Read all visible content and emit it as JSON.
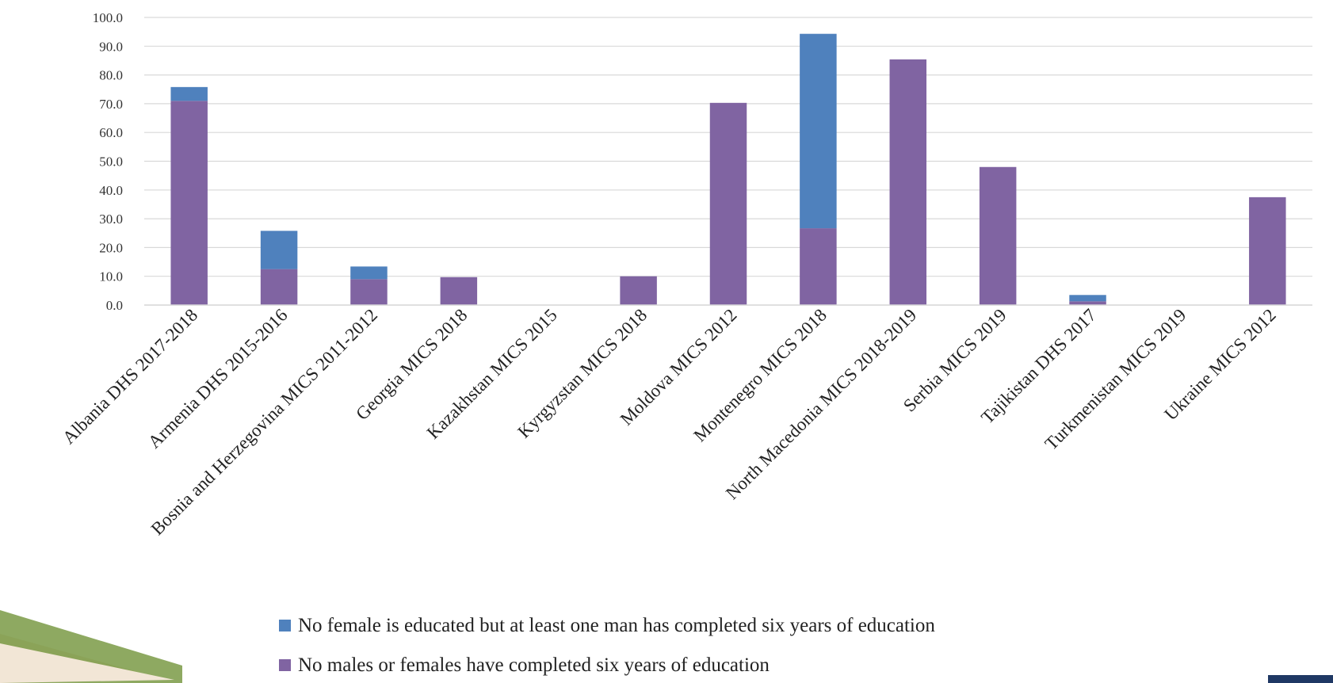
{
  "chart_data": {
    "type": "bar",
    "stacked": true,
    "categories": [
      "Albania DHS 2017-2018",
      "Armenia DHS 2015-2016",
      "Bosnia and Herzegovina MICS 2011-2012",
      "Georgia MICS 2018",
      "Kazakhstan MICS 2015",
      "Kyrgyzstan MICS 2018",
      "Moldova MICS 2012",
      "Montenegro MICS 2018",
      "North Macedonia MICS 2018-2019",
      "Serbia MICS 2019",
      "Tajikistan DHS 2017",
      "Turkmenistan MICS 2019",
      "Ukraine MICS 2012"
    ],
    "series": [
      {
        "name": "No males or females have completed six years of education",
        "color": "#8064a2",
        "values": [
          71.0,
          12.5,
          9.0,
          9.7,
          0.0,
          10.0,
          70.3,
          26.7,
          85.4,
          48.0,
          1.3,
          0.0,
          37.5
        ]
      },
      {
        "name": "No female is educated but at least one man has completed six years of education",
        "color": "#4f81bd",
        "values": [
          4.8,
          13.3,
          4.4,
          0.0,
          0.0,
          0.0,
          0.0,
          67.6,
          0.0,
          0.0,
          2.2,
          0.0,
          0.0
        ]
      }
    ],
    "ylim": [
      0,
      100
    ],
    "yticks": [
      "0.0",
      "10.0",
      "20.0",
      "30.0",
      "40.0",
      "50.0",
      "60.0",
      "70.0",
      "80.0",
      "90.0",
      "100.0"
    ],
    "grid": true,
    "legend_position": "bottom",
    "legend_order": [
      1,
      0
    ]
  },
  "colors": {
    "grid": "#d9d9d9",
    "decor_band": "#6e8b3d",
    "decor_light": "#e9d8c4",
    "corner_badge": "#1f3864"
  }
}
